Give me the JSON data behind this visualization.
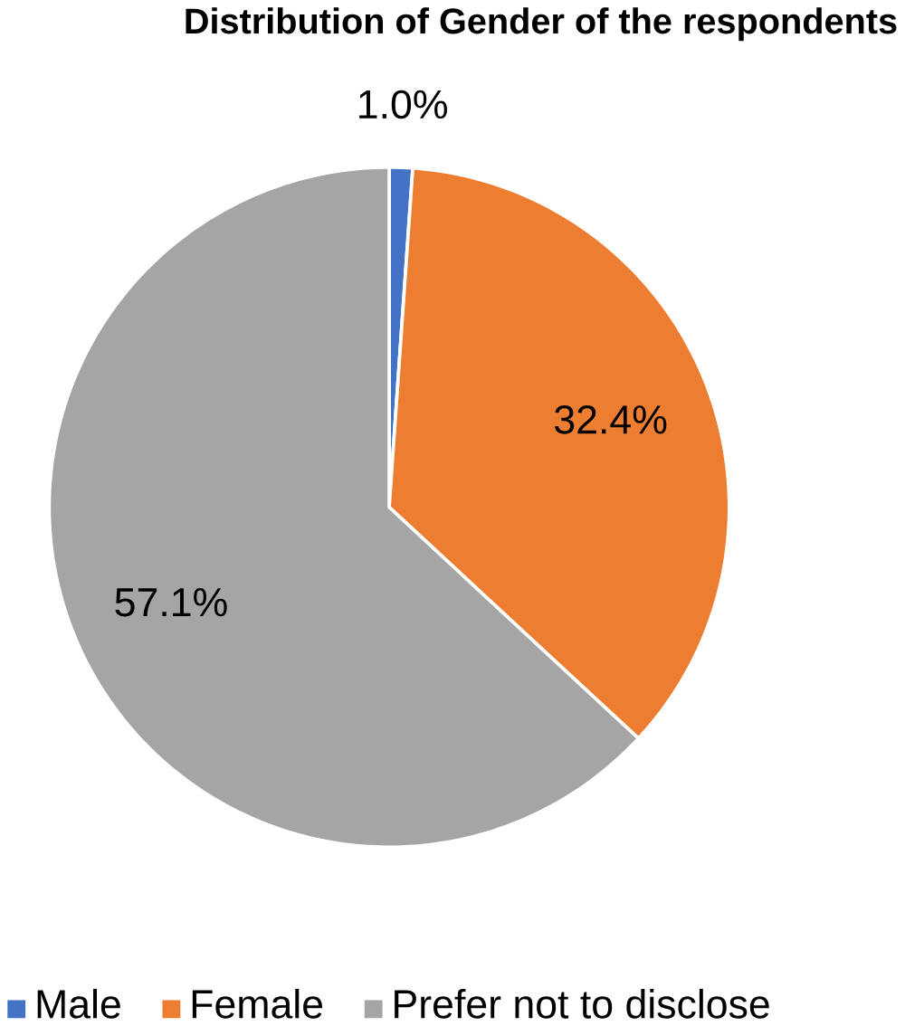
{
  "chart_data": {
    "type": "pie",
    "title": "Distribution of Gender of the respondents",
    "categories": [
      "Male",
      "Female",
      "Prefer not to disclose"
    ],
    "values": [
      1.0,
      32.4,
      57.1
    ],
    "value_labels": [
      "1.0%",
      "32.4%",
      "57.1%"
    ],
    "colors": [
      "#4472c4",
      "#ed7d31",
      "#a5a5a5"
    ],
    "legend": "bottom"
  }
}
